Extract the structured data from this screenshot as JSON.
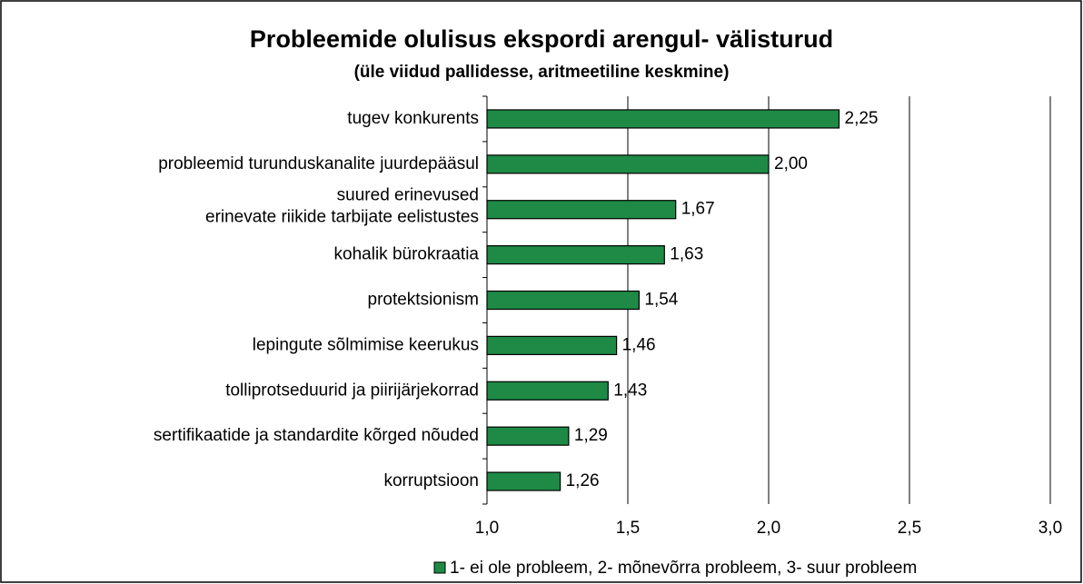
{
  "chart_data": {
    "type": "hbar",
    "title": "Probleemide olulisus ekspordi arengul- välisturud",
    "subtitle": "(üle viidud pallidesse, aritmeetiline keskmine)",
    "categories": [
      [
        "tugev konkurents"
      ],
      [
        "probleemid turunduskanalite juurdepääsul"
      ],
      [
        "suured erinevused",
        "erinevate riikide tarbijate eelistustes"
      ],
      [
        "kohalik bürokraatia"
      ],
      [
        "protektsionism"
      ],
      [
        "lepingute sõlmimise keerukus"
      ],
      [
        "tolliprotseduurid ja piirijärjekorrad"
      ],
      [
        "sertifikaatide ja standardite kõrged nõuded"
      ],
      [
        "korruptsioon"
      ]
    ],
    "series": [
      {
        "name": "1- ei ole probleem, 2- mõnevõrra probleem, 3- suur probleem",
        "color": "#1e8a46",
        "values": [
          2.25,
          2.0,
          1.67,
          1.63,
          1.54,
          1.46,
          1.43,
          1.29,
          1.26
        ],
        "value_labels": [
          "2,25",
          "2,00",
          "1,67",
          "1,63",
          "1,54",
          "1,46",
          "1,43",
          "1,29",
          "1,26"
        ]
      }
    ],
    "xlim": [
      1,
      3
    ],
    "xticks": [
      {
        "value": 1,
        "label": "1,0"
      },
      {
        "value": 1.5,
        "label": "1,5"
      },
      {
        "value": 2,
        "label": "2,0"
      },
      {
        "value": 2.5,
        "label": "2,5"
      },
      {
        "value": 3,
        "label": "3,0"
      }
    ],
    "grid": true,
    "legend": "bottom"
  }
}
